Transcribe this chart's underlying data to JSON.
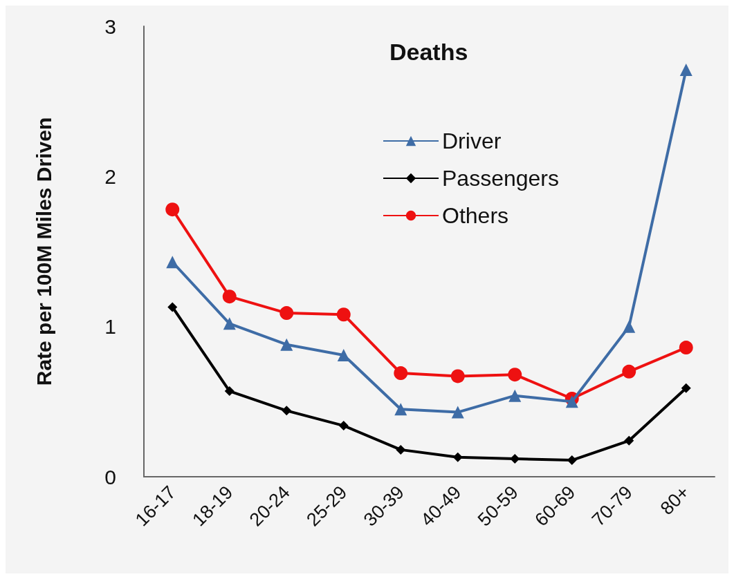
{
  "chart_data": {
    "type": "line",
    "title": "Deaths",
    "ylabel": "Rate per 100M Miles Driven",
    "categories": [
      "16-17",
      "18-19",
      "20-24",
      "25-29",
      "30-39",
      "40-49",
      "50-59",
      "60-69",
      "70-79",
      "80+"
    ],
    "series": [
      {
        "name": "Driver",
        "color": "#3e6ca6",
        "marker": "triangle",
        "values": [
          1.43,
          1.02,
          0.88,
          0.81,
          0.45,
          0.43,
          0.54,
          0.5,
          1.0,
          2.71
        ]
      },
      {
        "name": "Passengers",
        "color": "#000000",
        "marker": "diamond",
        "values": [
          1.13,
          0.57,
          0.44,
          0.34,
          0.18,
          0.13,
          0.12,
          0.11,
          0.24,
          0.59
        ]
      },
      {
        "name": "Others",
        "color": "#ee1111",
        "marker": "circle",
        "values": [
          1.78,
          1.2,
          1.09,
          1.08,
          0.69,
          0.67,
          0.68,
          0.52,
          0.7,
          0.86
        ]
      }
    ],
    "ylim": [
      0,
      3
    ],
    "yticks": [
      0,
      1,
      2,
      3
    ],
    "grid": false,
    "legend": "top"
  }
}
